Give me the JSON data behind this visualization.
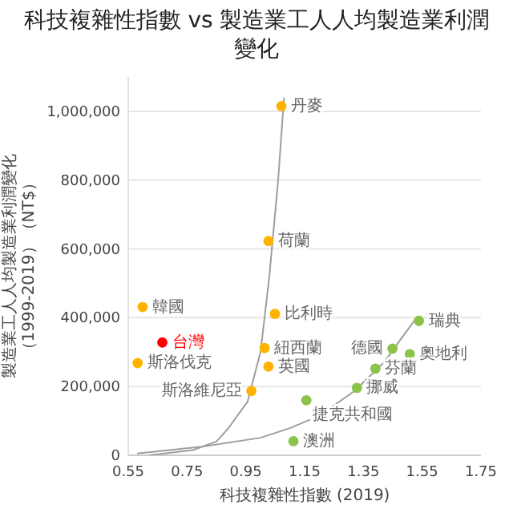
{
  "chart_data": {
    "type": "scatter",
    "title": "科技複雜性指數 vs 製造業工人人均製造業利潤變化",
    "xlabel": "科技複雜性指數 (2019)",
    "ylabel": "製造業工人人均製造業利潤變化（1999-2019）（NT$）",
    "xlim": [
      0.55,
      1.75
    ],
    "xticks": [
      0.55,
      0.75,
      0.95,
      1.15,
      1.35,
      1.55,
      1.75
    ],
    "ylim": [
      0,
      1100000
    ],
    "yticks": [
      0,
      {
        "value": 200000,
        "label": "200,000"
      },
      {
        "value": 400000,
        "label": "400,000"
      },
      {
        "value": 600000,
        "label": "600,000"
      },
      {
        "value": 800000,
        "label": "800,000"
      },
      {
        "value": 1000000,
        "label": "1,000,000"
      }
    ],
    "grid": "y",
    "series": [
      {
        "type": "line",
        "color": "#9e9e9e",
        "x": [
          0.62,
          0.77,
          0.85,
          0.89,
          0.956,
          1.0,
          1.03,
          1.06,
          1.08
        ],
        "values": [
          0,
          15000,
          40000,
          78000,
          156000,
          300000,
          520000,
          800000,
          1040000
        ]
      },
      {
        "type": "line",
        "color": "#9e9e9e",
        "x": [
          0.58,
          0.8,
          1.0,
          1.1,
          1.2,
          1.32,
          1.42,
          1.535
        ],
        "values": [
          5000,
          25000,
          51000,
          79000,
          115000,
          187000,
          270000,
          405000
        ]
      },
      {
        "type": "scatter",
        "marker": "circle",
        "color": "#ffb300",
        "x": [
          1.071,
          1.027,
          0.599,
          0.582,
          1.049,
          1.014,
          1.027,
          0.969
        ],
        "values": [
          1015000,
          623000,
          431000,
          268000,
          411000,
          312000,
          258000,
          187000
        ]
      },
      {
        "type": "scatter",
        "marker": "circle",
        "color": "#ff0000",
        "x": [
          0.666
        ],
        "values": [
          328000
        ]
      },
      {
        "type": "scatter",
        "marker": "circle",
        "color": "#8bc34a",
        "x": [
          1.539,
          1.449,
          1.508,
          1.391,
          1.328,
          1.156,
          1.112
        ],
        "values": [
          391000,
          310000,
          294000,
          252000,
          196000,
          160000,
          41000
        ]
      }
    ],
    "annotations": [
      {
        "text": "丹麥",
        "x": 1.071,
        "y": 1015000
      },
      {
        "text": "荷蘭",
        "x": 1.027,
        "y": 623000
      },
      {
        "text": "韓國",
        "x": 0.599,
        "y": 431000
      },
      {
        "text": "斯洛伐克",
        "x": 0.582,
        "y": 268000
      },
      {
        "text": "比利時",
        "x": 1.049,
        "y": 411000
      },
      {
        "text": "紐西蘭",
        "x": 1.014,
        "y": 312000
      },
      {
        "text": "英國",
        "x": 1.027,
        "y": 258000
      },
      {
        "text": "斯洛維尼亞",
        "x": 0.969,
        "y": 187000
      },
      {
        "text": "台灣",
        "x": 0.666,
        "y": 328000
      },
      {
        "text": "瑞典",
        "x": 1.539,
        "y": 391000
      },
      {
        "text": "德國",
        "x": 1.449,
        "y": 310000
      },
      {
        "text": "奧地利",
        "x": 1.508,
        "y": 294000
      },
      {
        "text": "芬蘭",
        "x": 1.391,
        "y": 252000
      },
      {
        "text": "挪威",
        "x": 1.328,
        "y": 196000
      },
      {
        "text": "捷克共和國",
        "x": 1.156,
        "y": 160000
      },
      {
        "text": "澳洲",
        "x": 1.112,
        "y": 41000
      }
    ]
  }
}
